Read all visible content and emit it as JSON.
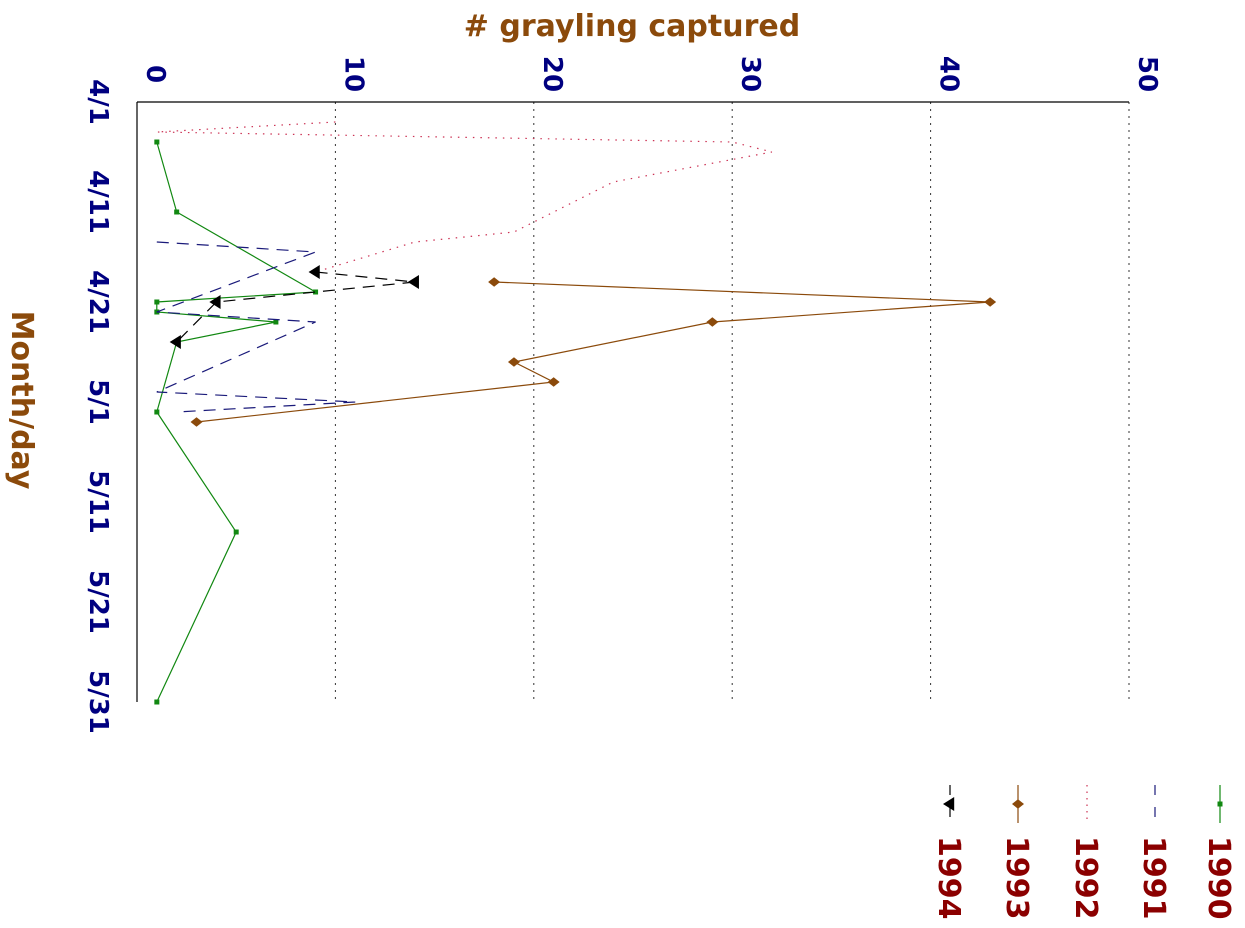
{
  "chart_data": {
    "type": "line",
    "orientation": "rotated-90",
    "xlabel": "Month/day",
    "ylabel": "# grayling captured",
    "x_ticks": [
      "4/1",
      "4/11",
      "4/21",
      "5/1",
      "5/11",
      "5/21",
      "5/31"
    ],
    "x_tick_values": [
      0,
      10,
      20,
      30,
      40,
      50,
      60
    ],
    "xlim": [
      0,
      60
    ],
    "ylim": [
      0,
      50
    ],
    "y_ticks": [
      "0",
      "10",
      "20",
      "30",
      "40",
      "50"
    ],
    "y_tick_values": [
      0,
      10,
      20,
      30,
      40,
      50
    ],
    "grid": "vertical dotted lines at y ticks",
    "legend_position": "bottom-right",
    "series": [
      {
        "name": "1990",
        "color": "#118811",
        "dash": "solid",
        "marker": "square",
        "points": [
          [
            4,
            1
          ],
          [
            11,
            2
          ],
          [
            19,
            9
          ],
          [
            20,
            1
          ],
          [
            21,
            1
          ],
          [
            22,
            7
          ],
          [
            24,
            2
          ],
          [
            31,
            1
          ],
          [
            43,
            5
          ],
          [
            60,
            1
          ]
        ]
      },
      {
        "name": "1991",
        "color": "#1A1A7A",
        "dash": "dashed",
        "marker": "none",
        "points": [
          [
            14,
            1
          ],
          [
            15,
            9
          ],
          [
            21,
            1
          ],
          [
            22,
            9
          ],
          [
            29,
            1
          ],
          [
            30,
            11
          ],
          [
            31,
            2
          ]
        ]
      },
      {
        "name": "1992",
        "color": "#CC3355",
        "dash": "dotted",
        "marker": "none",
        "points": [
          [
            2,
            10
          ],
          [
            3,
            1
          ],
          [
            4,
            30
          ],
          [
            5,
            32
          ],
          [
            8,
            24
          ],
          [
            13,
            19
          ],
          [
            14,
            14
          ],
          [
            17,
            9
          ]
        ]
      },
      {
        "name": "1993",
        "color": "#8B4A0B",
        "dash": "solid",
        "marker": "diamond",
        "points": [
          [
            18,
            18
          ],
          [
            20,
            43
          ],
          [
            22,
            29
          ],
          [
            26,
            19
          ],
          [
            28,
            21
          ],
          [
            32,
            3
          ]
        ]
      },
      {
        "name": "1994",
        "color": "#000000",
        "dash": "dashed",
        "marker": "triangle",
        "points": [
          [
            17,
            9
          ],
          [
            18,
            14
          ],
          [
            20,
            4
          ],
          [
            24,
            2
          ]
        ]
      }
    ]
  }
}
